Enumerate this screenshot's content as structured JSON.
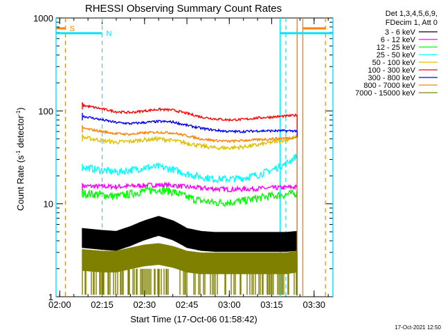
{
  "chart_data": {
    "type": "line",
    "title": "RHESSI Observing Summary Count Rates",
    "xlabel": "Start Time (17-Oct-06 01:58:42)",
    "ylabel_pre": "Count Rate (s",
    "ylabel_sup1": "-1",
    "ylabel_mid": " detector",
    "ylabel_sup2": "-1",
    "ylabel_post": ")",
    "y_scale": "log",
    "ylim": [
      1,
      1000
    ],
    "xlim": [
      "01:58:42",
      "03:36:40"
    ],
    "x_ticks": [
      "02:00",
      "02:15",
      "02:30",
      "02:45",
      "03:00",
      "03:15",
      "03:30"
    ],
    "y_ticks": [
      "1",
      "10",
      "100",
      "1000"
    ],
    "legend_header": [
      "Det 1,3,4,5,6,9,",
      "FDecim 1, Att 0"
    ],
    "series": [
      {
        "name": "3 - 6 keV",
        "color": "#000000",
        "x": [
          "02:08",
          "02:15",
          "02:20",
          "02:25",
          "02:30",
          "02:35",
          "02:40",
          "02:45",
          "02:50",
          "02:55",
          "03:00",
          "03:05",
          "03:10",
          "03:15",
          "03:20",
          "03:24"
        ],
        "y": [
          4.3,
          4.1,
          4.0,
          4.5,
          5.2,
          5.8,
          5.2,
          4.3,
          4.0,
          3.9,
          3.9,
          3.9,
          3.9,
          3.9,
          3.9,
          4.0
        ]
      },
      {
        "name": "6 - 12 keV",
        "color": "#ff00ff",
        "x": [
          "02:08",
          "02:15",
          "02:20",
          "02:25",
          "02:30",
          "02:35",
          "02:40",
          "02:45",
          "02:50",
          "02:55",
          "03:00",
          "03:05",
          "03:10",
          "03:15",
          "03:20",
          "03:24"
        ],
        "y": [
          15.5,
          15.4,
          15.3,
          15.5,
          15.8,
          16.0,
          15.8,
          15.2,
          14.8,
          14.5,
          14.3,
          14.4,
          14.6,
          14.8,
          15.0,
          15.2
        ]
      },
      {
        "name": "12 - 25 keV",
        "color": "#00ff00",
        "x": [
          "02:08",
          "02:15",
          "02:20",
          "02:25",
          "02:30",
          "02:35",
          "02:40",
          "02:45",
          "02:50",
          "02:55",
          "03:00",
          "03:05",
          "03:10",
          "03:15",
          "03:20",
          "03:24"
        ],
        "y": [
          13.0,
          12.5,
          12.0,
          12.8,
          13.8,
          14.3,
          13.5,
          11.8,
          10.8,
          10.3,
          10.4,
          10.8,
          11.5,
          12.2,
          12.6,
          13.0
        ]
      },
      {
        "name": "25 - 50 keV",
        "color": "#00ffff",
        "x": [
          "02:08",
          "02:15",
          "02:20",
          "02:25",
          "02:30",
          "02:35",
          "02:40",
          "02:45",
          "02:50",
          "02:55",
          "03:00",
          "03:05",
          "03:10",
          "03:15",
          "03:20",
          "03:24"
        ],
        "y": [
          25,
          23,
          22,
          23,
          24.5,
          25,
          23.5,
          21,
          19.5,
          18.5,
          18.5,
          19,
          20.5,
          23,
          27,
          33
        ]
      },
      {
        "name": "50 - 100 keV",
        "color": "#e0c000",
        "x": [
          "02:08",
          "02:15",
          "02:20",
          "02:25",
          "02:30",
          "02:35",
          "02:40",
          "02:45",
          "02:50",
          "02:55",
          "03:00",
          "03:05",
          "03:10",
          "03:15",
          "03:20",
          "03:24"
        ],
        "y": [
          52,
          48,
          46,
          47,
          49,
          50,
          48,
          45,
          42,
          40,
          40,
          41,
          43,
          46,
          49,
          52
        ]
      },
      {
        "name": "100 - 300 keV",
        "color": "#ff0000",
        "x": [
          "02:08",
          "02:15",
          "02:20",
          "02:25",
          "02:30",
          "02:35",
          "02:40",
          "02:45",
          "02:50",
          "02:55",
          "03:00",
          "03:05",
          "03:10",
          "03:15",
          "03:20",
          "03:24"
        ],
        "y": [
          115,
          105,
          98,
          96,
          100,
          104,
          102,
          94,
          86,
          82,
          80,
          81,
          84,
          86,
          88,
          90
        ]
      },
      {
        "name": "300 - 800 keV",
        "color": "#0000ff",
        "x": [
          "02:08",
          "02:15",
          "02:20",
          "02:25",
          "02:30",
          "02:35",
          "02:40",
          "02:45",
          "02:50",
          "02:55",
          "03:00",
          "03:05",
          "03:10",
          "03:15",
          "03:20",
          "03:24"
        ],
        "y": [
          88,
          80,
          75,
          73,
          75,
          77,
          76,
          70,
          65,
          62,
          60,
          60,
          61,
          61,
          61,
          61
        ]
      },
      {
        "name": "800 - 7000 keV",
        "color": "#ff8000",
        "x": [
          "02:08",
          "02:15",
          "02:20",
          "02:25",
          "02:30",
          "02:35",
          "02:40",
          "02:45",
          "02:50",
          "02:55",
          "03:00",
          "03:05",
          "03:10",
          "03:15",
          "03:20",
          "03:24"
        ],
        "y": [
          65,
          60,
          57,
          56,
          58,
          59,
          58,
          54,
          50,
          48,
          47,
          48,
          49,
          50,
          51,
          52
        ]
      },
      {
        "name": "7000 - 15000 keV",
        "color": "#808000",
        "x": [
          "02:08",
          "02:15",
          "02:20",
          "02:25",
          "02:30",
          "02:35",
          "02:40",
          "02:45",
          "02:50",
          "02:55",
          "03:00",
          "03:05",
          "03:10",
          "03:15",
          "03:20",
          "03:24"
        ],
        "y": [
          2.5,
          2.4,
          2.4,
          2.6,
          2.8,
          2.9,
          2.7,
          2.4,
          2.3,
          2.3,
          2.3,
          2.3,
          2.3,
          2.3,
          2.3,
          2.4
        ]
      }
    ],
    "markers": [
      {
        "label": "S",
        "color": "#ff8000",
        "x_dashed": [
          "02:02",
          "03:34"
        ],
        "x_solid": [
          "03:24",
          "03:26"
        ]
      },
      {
        "label": "N",
        "color": "#00e0ff",
        "x_dashed": [
          "02:15",
          "03:20"
        ],
        "x_solid": [
          "01:58:42",
          "03:18",
          "03:36:40"
        ]
      }
    ],
    "footer_date": "17-Oct-2021 12:50"
  }
}
